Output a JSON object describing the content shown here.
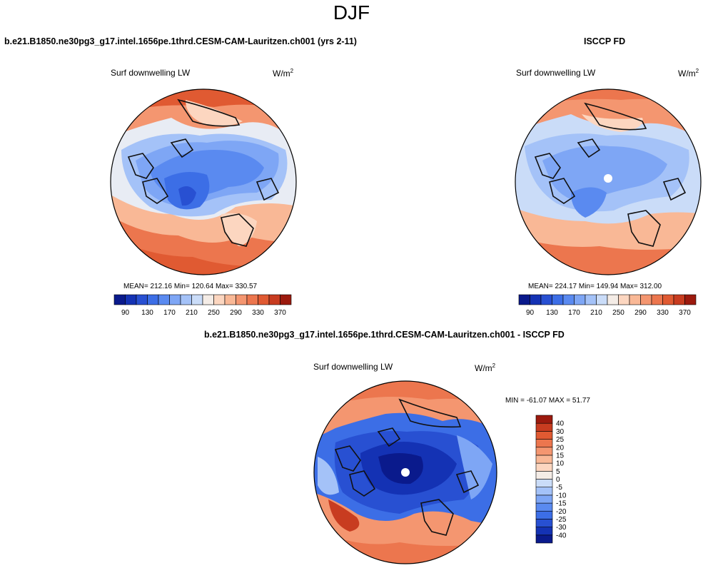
{
  "season": "DJF",
  "panel1": {
    "title": "b.e21.B1850.ne30pg3_g17.intel.1656pe.1thrd.CESM-CAM-Lauritzen.ch001 (yrs 2-11)",
    "variable": "Surf downwelling LW",
    "units_base": "W/m",
    "units_exp": "2",
    "stats": "MEAN= 212.16  Min= 120.64  Max= 330.57"
  },
  "panel2": {
    "title": "ISCCP FD",
    "variable": "Surf downwelling LW",
    "units_base": "W/m",
    "units_exp": "2",
    "stats": "MEAN= 224.17  Min= 149.94  Max= 312.00"
  },
  "panel3": {
    "title": "b.e21.B1850.ne30pg3_g17.intel.1656pe.1thrd.CESM-CAM-Lauritzen.ch001 - ISCCP FD",
    "variable": "Surf downwelling LW",
    "units_base": "W/m",
    "units_exp": "2",
    "stats": "MIN = -61.07 MAX =  51.77"
  },
  "abs_colorbar": {
    "colors": [
      "#0a1a8c",
      "#1432b4",
      "#2850d2",
      "#3c6ee6",
      "#5a8af0",
      "#7ea6f5",
      "#a4c2f8",
      "#cadcf8",
      "#f4ece6",
      "#fcd6c0",
      "#f9b896",
      "#f49670",
      "#ec764e",
      "#e05a32",
      "#c83c20",
      "#9c1a0e"
    ],
    "labels": [
      "90",
      "130",
      "170",
      "210",
      "250",
      "290",
      "330",
      "370"
    ]
  },
  "diff_colorbar": {
    "colors": [
      "#0a1a8c",
      "#1432b4",
      "#2850d2",
      "#3c6ee6",
      "#5a8af0",
      "#7ea6f5",
      "#a4c2f8",
      "#cadcf8",
      "#f4ece6",
      "#fcd6c0",
      "#f9b896",
      "#f49670",
      "#ec764e",
      "#e05a32",
      "#c83c20",
      "#9c1a0e"
    ],
    "labels": [
      "-40",
      "-30",
      "-25",
      "-20",
      "-15",
      "-10",
      "-5",
      "0",
      "5",
      "10",
      "15",
      "20",
      "25",
      "30",
      "40"
    ]
  }
}
